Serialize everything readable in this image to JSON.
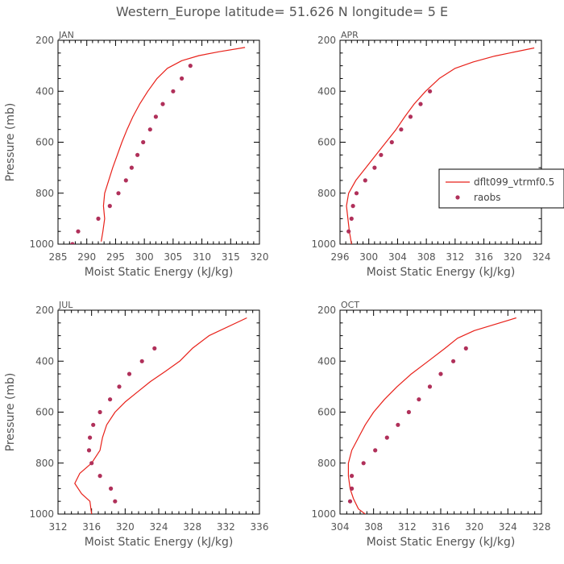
{
  "title": "Western_Europe  latitude= 51.626 N longitude= 5 E",
  "colors": {
    "model": "#e8211a",
    "raobs": "#b0305a",
    "text": "#555555"
  },
  "legend": {
    "model_label": "dflt099_vtrmf0.5",
    "raobs_label": "raobs"
  },
  "chart_data": [
    {
      "type": "line",
      "panel": "JAN",
      "xlabel": "Moist Static Energy (kJ/kg)",
      "ylabel": "Pressure (mb)",
      "xlim": [
        285,
        320
      ],
      "ylim": [
        1000,
        200
      ],
      "xticks": [
        285,
        290,
        295,
        300,
        305,
        310,
        315,
        320
      ],
      "yticks": [
        200,
        400,
        600,
        800,
        1000
      ],
      "series": [
        {
          "name": "dflt099_vtrmf0.5",
          "kind": "line",
          "points": [
            [
              292.5,
              990
            ],
            [
              292.8,
              950
            ],
            [
              293.1,
              900
            ],
            [
              292.9,
              850
            ],
            [
              293.1,
              800
            ],
            [
              293.8,
              750
            ],
            [
              294.5,
              700
            ],
            [
              295.3,
              650
            ],
            [
              296.1,
              600
            ],
            [
              297.0,
              550
            ],
            [
              298.0,
              500
            ],
            [
              299.2,
              450
            ],
            [
              300.6,
              400
            ],
            [
              302.2,
              350
            ],
            [
              304.0,
              310
            ],
            [
              306.5,
              280
            ],
            [
              309.5,
              260
            ],
            [
              313.0,
              245
            ],
            [
              317.5,
              228
            ]
          ]
        },
        {
          "name": "raobs",
          "kind": "markers",
          "points": [
            [
              287.5,
              1000
            ],
            [
              288.5,
              950
            ],
            [
              292.0,
              900
            ],
            [
              294.0,
              850
            ],
            [
              295.5,
              800
            ],
            [
              296.8,
              750
            ],
            [
              297.8,
              700
            ],
            [
              298.8,
              650
            ],
            [
              299.8,
              600
            ],
            [
              301.0,
              550
            ],
            [
              302.0,
              500
            ],
            [
              303.2,
              450
            ],
            [
              305.0,
              400
            ],
            [
              306.5,
              350
            ],
            [
              308.0,
              300
            ]
          ]
        }
      ]
    },
    {
      "type": "line",
      "panel": "APR",
      "xlabel": "Moist Static Energy (kJ/kg)",
      "ylabel": "",
      "xlim": [
        296,
        324
      ],
      "ylim": [
        1000,
        200
      ],
      "xticks": [
        296,
        300,
        304,
        308,
        312,
        316,
        320,
        324
      ],
      "yticks": [
        200,
        400,
        600,
        800,
        1000
      ],
      "show_legend": true,
      "series": [
        {
          "name": "dflt099_vtrmf0.5",
          "kind": "line",
          "points": [
            [
              297.6,
              1000
            ],
            [
              297.3,
              950
            ],
            [
              297.1,
              900
            ],
            [
              296.9,
              850
            ],
            [
              297.2,
              800
            ],
            [
              298.2,
              750
            ],
            [
              299.6,
              700
            ],
            [
              301.0,
              650
            ],
            [
              302.4,
              600
            ],
            [
              303.8,
              550
            ],
            [
              305.0,
              500
            ],
            [
              306.3,
              450
            ],
            [
              307.9,
              400
            ],
            [
              309.8,
              350
            ],
            [
              312.0,
              310
            ],
            [
              314.5,
              285
            ],
            [
              317.5,
              262
            ],
            [
              323.0,
              230
            ]
          ]
        },
        {
          "name": "raobs",
          "kind": "markers",
          "points": [
            [
              297.2,
              950
            ],
            [
              297.6,
              900
            ],
            [
              297.8,
              850
            ],
            [
              298.3,
              800
            ],
            [
              299.5,
              750
            ],
            [
              300.8,
              700
            ],
            [
              301.7,
              650
            ],
            [
              303.2,
              600
            ],
            [
              304.5,
              550
            ],
            [
              305.8,
              500
            ],
            [
              307.2,
              450
            ],
            [
              308.5,
              400
            ]
          ]
        }
      ]
    },
    {
      "type": "line",
      "panel": "JUL",
      "xlabel": "Moist Static Energy (kJ/kg)",
      "ylabel": "Pressure (mb)",
      "xlim": [
        312,
        336
      ],
      "ylim": [
        1000,
        200
      ],
      "xticks": [
        312,
        316,
        320,
        324,
        328,
        332,
        336
      ],
      "yticks": [
        200,
        400,
        600,
        800,
        1000
      ],
      "series": [
        {
          "name": "dflt099_vtrmf0.5",
          "kind": "line",
          "points": [
            [
              316.0,
              1000
            ],
            [
              315.8,
              950
            ],
            [
              314.8,
              920
            ],
            [
              314.0,
              880
            ],
            [
              314.6,
              840
            ],
            [
              316.0,
              800
            ],
            [
              317.0,
              750
            ],
            [
              317.3,
              700
            ],
            [
              317.8,
              650
            ],
            [
              318.8,
              600
            ],
            [
              320.0,
              560
            ],
            [
              321.5,
              520
            ],
            [
              323.0,
              480
            ],
            [
              324.8,
              440
            ],
            [
              326.5,
              400
            ],
            [
              328.0,
              350
            ],
            [
              330.0,
              300
            ],
            [
              334.5,
              230
            ]
          ]
        },
        {
          "name": "raobs",
          "kind": "markers",
          "points": [
            [
              318.8,
              950
            ],
            [
              318.3,
              900
            ],
            [
              317.0,
              850
            ],
            [
              316.0,
              800
            ],
            [
              315.7,
              750
            ],
            [
              315.8,
              700
            ],
            [
              316.2,
              650
            ],
            [
              317.0,
              600
            ],
            [
              318.2,
              550
            ],
            [
              319.3,
              500
            ],
            [
              320.5,
              450
            ],
            [
              322.0,
              400
            ],
            [
              323.5,
              350
            ]
          ]
        }
      ]
    },
    {
      "type": "line",
      "panel": "OCT",
      "xlabel": "Moist Static Energy (kJ/kg)",
      "ylabel": "",
      "xlim": [
        304,
        328
      ],
      "ylim": [
        1000,
        200
      ],
      "xticks": [
        304,
        308,
        312,
        316,
        320,
        324,
        328
      ],
      "yticks": [
        200,
        400,
        600,
        800,
        1000
      ],
      "series": [
        {
          "name": "dflt099_vtrmf0.5",
          "kind": "line",
          "points": [
            [
              307.0,
              1000
            ],
            [
              306.2,
              980
            ],
            [
              305.6,
              940
            ],
            [
              305.2,
              900
            ],
            [
              305.0,
              850
            ],
            [
              305.0,
              800
            ],
            [
              305.4,
              750
            ],
            [
              306.2,
              700
            ],
            [
              307.0,
              650
            ],
            [
              308.0,
              600
            ],
            [
              309.3,
              550
            ],
            [
              310.8,
              500
            ],
            [
              312.5,
              450
            ],
            [
              314.5,
              400
            ],
            [
              316.5,
              350
            ],
            [
              318.0,
              310
            ],
            [
              320.0,
              280
            ],
            [
              325.0,
              230
            ]
          ]
        },
        {
          "name": "raobs",
          "kind": "markers",
          "points": [
            [
              305.2,
              950
            ],
            [
              305.4,
              900
            ],
            [
              305.4,
              850
            ],
            [
              306.8,
              800
            ],
            [
              308.2,
              750
            ],
            [
              309.6,
              700
            ],
            [
              310.9,
              650
            ],
            [
              312.2,
              600
            ],
            [
              313.4,
              550
            ],
            [
              314.7,
              500
            ],
            [
              316.0,
              450
            ],
            [
              317.5,
              400
            ],
            [
              319.0,
              350
            ]
          ]
        }
      ]
    }
  ]
}
